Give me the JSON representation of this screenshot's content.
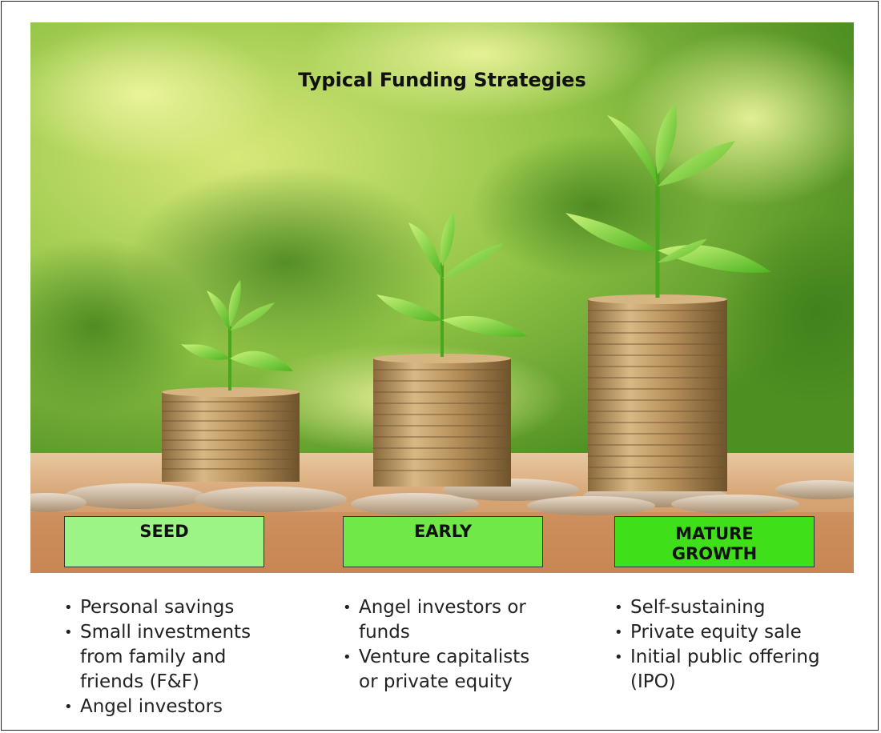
{
  "title": "Typical Funding Strategies",
  "stages": [
    {
      "label": "SEED",
      "label_line2": "",
      "color": "#9cf487",
      "bullets": [
        "Personal savings",
        "Small investments from family and friends (F&F)",
        "Angel investors"
      ]
    },
    {
      "label": "EARLY",
      "label_line2": "",
      "color": "#6fe848",
      "bullets": [
        "Angel investors or funds",
        "Venture capitalists or private equity"
      ]
    },
    {
      "label": "MATURE",
      "label_line2": "GROWTH",
      "color": "#3fe01a",
      "bullets": [
        "Self-sustaining",
        "Private equity sale",
        "Initial public offering (IPO)"
      ]
    }
  ],
  "colors": {
    "background_green_light": "#c8e06a",
    "background_green_dark": "#4a8a1e",
    "coin": "#c9a46a",
    "table": "#d19a6a"
  }
}
